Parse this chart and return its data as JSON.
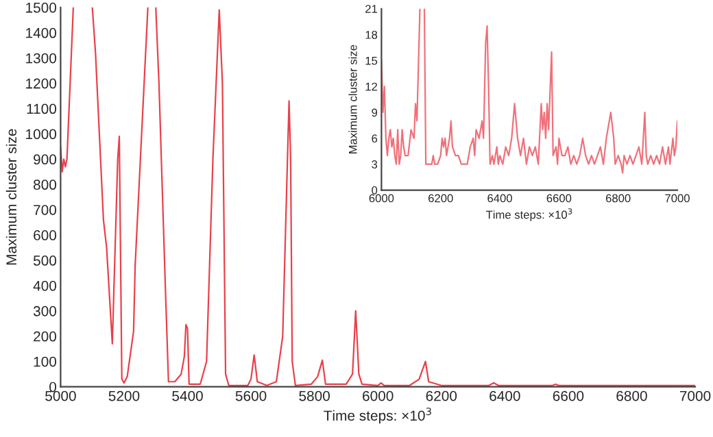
{
  "chart_data": [
    {
      "type": "line",
      "xlabel": "Time steps: ×10$^{3}$",
      "ylabel": "Maximum cluster size",
      "xlim": [
        5000,
        7000
      ],
      "ylim": [
        0,
        1500
      ],
      "xticks": [
        5000,
        5200,
        5400,
        5600,
        5800,
        6000,
        6200,
        6400,
        6600,
        6800,
        7000
      ],
      "yticks": [
        0,
        100,
        200,
        300,
        400,
        500,
        600,
        700,
        800,
        900,
        1000,
        1100,
        1200,
        1300,
        1400,
        1500
      ],
      "grid": false,
      "series": [
        {
          "color": "#e8404a",
          "x": [
            5000,
            5005,
            5010,
            5015,
            5020,
            5040,
            5070,
            5100,
            5110,
            5135,
            5145,
            5163,
            5180,
            5185,
            5193,
            5200,
            5210,
            5230,
            5235,
            5275,
            5288,
            5300,
            5310,
            5330,
            5340,
            5360,
            5380,
            5390,
            5395,
            5400,
            5405,
            5440,
            5460,
            5480,
            5500,
            5510,
            5520,
            5530,
            5590,
            5600,
            5610,
            5620,
            5650,
            5680,
            5700,
            5715,
            5720,
            5725,
            5730,
            5740,
            5790,
            5810,
            5825,
            5835,
            5900,
            5920,
            5930,
            5940,
            5950,
            6000,
            6010,
            6020,
            6100,
            6130,
            6150,
            6160,
            6200,
            6350,
            6365,
            6380,
            6550,
            6560,
            6570,
            7000
          ],
          "values": [
            950,
            850,
            900,
            870,
            900,
            1500,
            null,
            1500,
            1320,
            660,
            550,
            170,
            900,
            990,
            30,
            15,
            40,
            220,
            480,
            1500,
            null,
            1500,
            1200,
            400,
            20,
            20,
            50,
            120,
            245,
            230,
            10,
            10,
            100,
            900,
            1490,
            1200,
            50,
            5,
            5,
            30,
            125,
            20,
            5,
            20,
            200,
            900,
            1130,
            900,
            100,
            5,
            10,
            40,
            105,
            10,
            10,
            50,
            300,
            50,
            10,
            5,
            15,
            5,
            5,
            30,
            100,
            20,
            5,
            5,
            15,
            5,
            5,
            10,
            5,
            5
          ]
        }
      ]
    },
    {
      "type": "line",
      "xlabel": "Time steps: ×10$^{3}$",
      "ylabel": "Maximum cluster size",
      "xlim": [
        6000,
        7000
      ],
      "ylim": [
        0,
        21
      ],
      "xticks": [
        6000,
        6200,
        6400,
        6600,
        6800,
        7000
      ],
      "yticks": [
        0,
        3,
        6,
        9,
        12,
        15,
        18,
        21
      ],
      "grid": false,
      "series": [
        {
          "color": "#f0707a",
          "x": [
            6000,
            6005,
            6010,
            6015,
            6020,
            6025,
            6030,
            6035,
            6040,
            6045,
            6050,
            6055,
            6060,
            6065,
            6070,
            6075,
            6080,
            6090,
            6100,
            6110,
            6115,
            6120,
            6130,
            6138,
            6145,
            6150,
            6170,
            6175,
            6180,
            6190,
            6200,
            6205,
            6210,
            6215,
            6220,
            6230,
            6235,
            6240,
            6250,
            6260,
            6270,
            6290,
            6300,
            6310,
            6315,
            6320,
            6330,
            6340,
            6345,
            6352,
            6357,
            6362,
            6367,
            6375,
            6380,
            6390,
            6395,
            6400,
            6410,
            6420,
            6430,
            6440,
            6450,
            6460,
            6470,
            6480,
            6490,
            6500,
            6510,
            6520,
            6530,
            6540,
            6545,
            6550,
            6555,
            6560,
            6565,
            6575,
            6580,
            6590,
            6595,
            6600,
            6610,
            6620,
            6630,
            6640,
            6650,
            6660,
            6670,
            6680,
            6690,
            6700,
            6710,
            6720,
            6730,
            6740,
            6750,
            6760,
            6775,
            6785,
            6790,
            6800,
            6810,
            6815,
            6820,
            6830,
            6840,
            6850,
            6860,
            6870,
            6880,
            6890,
            6895,
            6900,
            6910,
            6920,
            6930,
            6940,
            6950,
            6960,
            6970,
            6975,
            6985,
            6990,
            6995,
            7000
          ],
          "values": [
            15,
            9,
            12,
            6,
            4,
            6,
            7,
            5,
            6,
            4,
            3,
            7,
            3,
            4,
            7,
            5,
            4,
            4,
            7,
            6,
            10,
            8,
            21,
            null,
            21,
            3,
            3,
            4,
            3,
            3,
            4,
            6,
            5,
            6,
            4,
            6,
            8,
            5,
            4,
            4,
            3,
            3,
            5,
            6,
            4,
            7,
            6,
            8,
            6,
            17,
            19,
            12,
            3,
            4,
            3,
            5,
            3,
            4,
            3,
            5,
            4,
            6,
            10,
            6,
            4,
            6,
            3,
            5,
            4,
            5,
            3,
            10,
            7,
            9,
            6,
            10,
            7,
            16,
            4,
            5,
            3,
            6,
            4,
            4,
            5,
            3,
            4,
            3,
            4,
            6,
            4,
            3,
            4,
            3,
            4,
            5,
            3,
            6,
            9,
            6,
            3,
            4,
            3,
            2,
            4,
            3,
            4,
            3,
            4,
            5,
            3,
            9,
            4,
            3,
            4,
            3,
            4,
            3,
            5,
            3,
            5,
            3,
            6,
            4,
            5,
            8
          ]
        }
      ]
    }
  ]
}
